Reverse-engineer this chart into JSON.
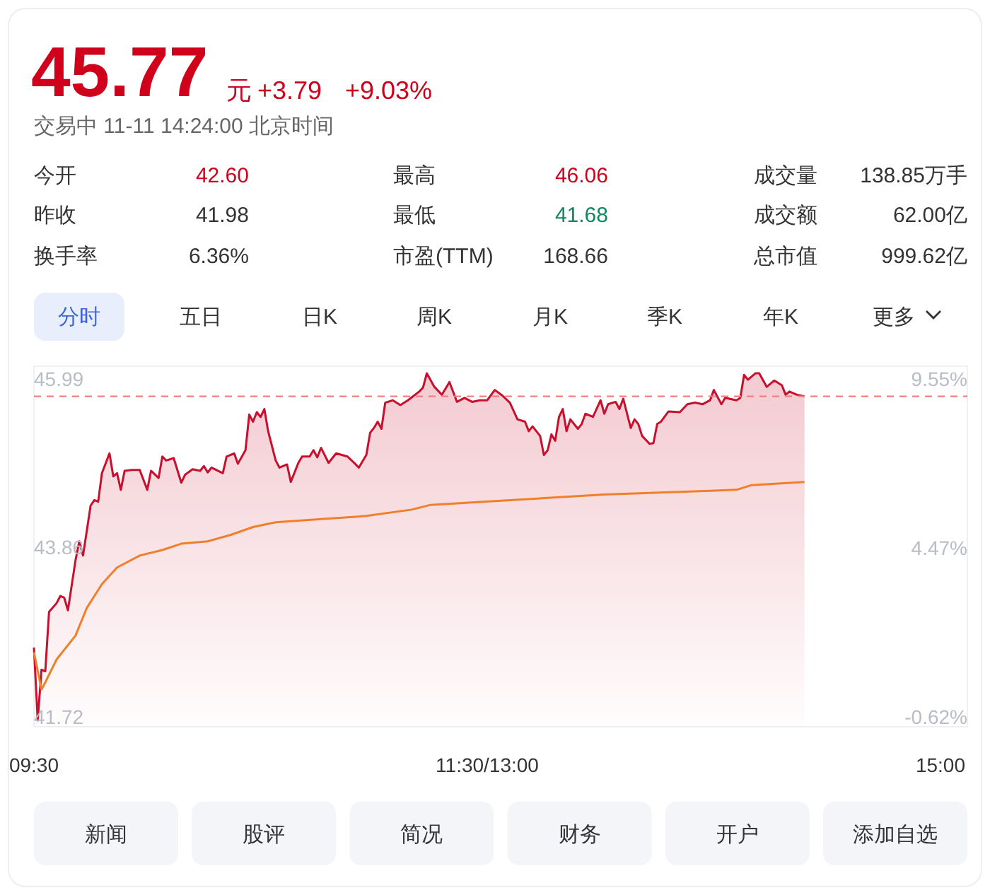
{
  "chart_data": [
    {
      "type": "other",
      "title": "45.77",
      "annotations": [
        "元",
        "+3.79",
        "+9.03%",
        "交易中 11-11 14:24:00 北京时间",
        "今开",
        "42.60",
        "最高",
        "46.06",
        "成交量",
        "138.85万手",
        "昨收",
        "41.98",
        "最低",
        "41.68",
        "成交额",
        "62.00亿",
        "换手率",
        "6.36%",
        "市盈(TTM)",
        "168.66",
        "总市值",
        "999.62亿",
        "分时",
        "五日",
        "日K",
        "周K",
        "月K",
        "季K",
        "年K",
        "更多"
      ]
    },
    {
      "type": "line",
      "categories": [
        "09:30",
        null,
        null,
        null,
        null,
        null,
        null,
        null,
        null,
        null,
        null,
        null,
        null,
        null,
        null,
        null,
        null,
        null,
        null,
        null,
        null,
        null,
        null,
        null,
        null,
        null,
        null,
        null,
        null,
        null,
        null,
        null,
        null,
        null,
        null,
        null,
        null,
        null,
        null,
        null,
        null,
        null,
        null,
        null,
        null,
        null,
        null,
        null,
        null,
        null,
        null,
        null,
        null,
        null,
        null,
        null,
        null,
        null,
        null,
        null,
        null,
        null,
        null,
        null,
        null,
        null,
        null,
        null,
        null,
        null,
        null,
        null,
        null,
        null,
        null,
        null,
        null,
        null,
        null,
        null,
        null,
        null,
        null,
        null,
        null,
        null,
        null,
        null,
        null,
        null,
        null,
        null,
        null,
        null,
        null,
        null,
        null,
        null,
        null,
        null,
        null,
        null,
        null,
        null,
        null,
        null,
        null,
        null,
        null,
        null,
        null,
        null,
        null,
        null,
        null,
        null,
        null,
        null,
        null,
        null,
        "11:30/13:00",
        null,
        null,
        null,
        null,
        null,
        null,
        null,
        null,
        null,
        null,
        null,
        null,
        null,
        null,
        null,
        null,
        null,
        null,
        null,
        null,
        null,
        null,
        null,
        null,
        null,
        null,
        null,
        null,
        null,
        null,
        null,
        null,
        null,
        null,
        null,
        null,
        null,
        null,
        null,
        null,
        null,
        null,
        null,
        null,
        null,
        null,
        null,
        null,
        null,
        null,
        null,
        null,
        null,
        null,
        null,
        null,
        null,
        null,
        null,
        null,
        null,
        null,
        null,
        null,
        null,
        null,
        null,
        null,
        null,
        null,
        null,
        null,
        null,
        null,
        null,
        null,
        null,
        null,
        null,
        null,
        null,
        null,
        null,
        null,
        null,
        null,
        null,
        null,
        null,
        null,
        null,
        null,
        null,
        null,
        null,
        null,
        null,
        null,
        null,
        null,
        null,
        null,
        null,
        null,
        null,
        null,
        null,
        null,
        null,
        null,
        null,
        null,
        null,
        null,
        null,
        null,
        null,
        null,
        null,
        "15:00"
      ],
      "ylim": [
        41.6,
        46.15
      ],
      "yticks": [
        41.72,
        43.86,
        45.99
      ],
      "y2lim": [
        -0.91,
        9.93
      ],
      "y2ticks": [
        {
          "value": -0.62,
          "label": "-0.62%"
        },
        {
          "value": 4.47,
          "label": "4.47%"
        },
        {
          "value": 9.55,
          "label": "9.55%"
        }
      ],
      "ref_lines": [
        {
          "axis": "y",
          "value": 45.77,
          "color": "#f08080",
          "line_style": "dashed"
        }
      ],
      "series": [
        {
          "type": "area",
          "color": "#c8102e",
          "values": [
            42.6,
            41.68,
            42.32,
            42.3,
            43.05,
            null,
            43.16,
            43.25,
            43.23,
            43.07,
            null,
            43.7,
            43.94,
            43.76,
            null,
            44.39,
            44.46,
            44.44,
            44.8,
            null,
            45.05,
            44.76,
            44.8,
            44.59,
            44.83,
            null,
            44.84,
            null,
            44.84,
            null,
            44.59,
            44.83,
            null,
            44.74,
            45.01,
            44.96,
            null,
            44.99,
            null,
            44.68,
            44.78,
            null,
            44.85,
            null,
            44.83,
            44.89,
            44.81,
            44.87,
            null,
            null,
            44.8,
            45.01,
            null,
            45.05,
            44.92,
            null,
            45.09,
            45.54,
            45.45,
            45.57,
            45.51,
            45.61,
            45.33,
            null,
            44.96,
            44.87,
            null,
            44.91,
            44.69,
            null,
            44.93,
            45.01,
            null,
            45.01,
            45.09,
            45,
            45.12,
            null,
            44.93,
            null,
            45.05,
            null,
            null,
            45.01,
            null,
            44.92,
            44.87,
            null,
            45.03,
            45.31,
            45.37,
            45.45,
            45.36,
            45.69,
            null,
            45.72,
            null,
            45.66,
            null,
            45.72,
            null,
            null,
            45.83,
            45.88,
            46.06,
            null,
            45.89,
            null,
            45.79,
            null,
            45.95,
            null,
            45.7,
            null,
            45.75,
            null,
            45.7,
            null,
            45.72,
            null,
            45.72,
            null,
            45.85,
            null,
            45.78,
            null,
            45.69,
            null,
            45.48,
            null,
            45.45,
            45.33,
            45.39,
            null,
            45.27,
            45.03,
            45.09,
            45.29,
            45.21,
            45.51,
            45.61,
            45.33,
            45.48,
            null,
            45.36,
            45.42,
            45.55,
            null,
            45.51,
            null,
            45.72,
            45.55,
            45.67,
            null,
            45.7,
            45.61,
            45.74,
            null,
            45.37,
            45.48,
            45.42,
            45.27,
            null,
            45.17,
            45.18,
            45.42,
            45.45,
            null,
            45.58,
            null,
            null,
            45.57,
            null,
            45.67,
            null,
            45.69,
            null,
            45.67,
            null,
            45.72,
            45.85,
            null,
            45.67,
            45.75,
            null,
            null,
            45.72,
            45.75,
            46.04,
            45.98,
            null,
            46.06,
            46.06,
            null,
            45.89,
            null,
            45.97,
            null,
            45.91,
            45.79,
            45.83,
            null,
            45.79,
            null,
            45.77,
            null,
            null,
            null,
            null,
            null,
            null,
            null,
            null,
            null,
            null,
            null,
            null,
            null,
            null,
            null,
            null,
            null,
            null,
            null,
            null,
            null,
            null,
            null,
            null,
            null,
            null,
            null,
            null,
            null,
            null,
            null,
            null,
            null,
            null,
            null,
            null
          ]
        },
        {
          "color": "#f07f2a",
          "values": [
            42.54,
            null,
            42.07,
            42.16,
            null,
            null,
            42.45,
            null,
            null,
            null,
            null,
            42.75,
            null,
            null,
            43.1,
            null,
            null,
            null,
            43.4,
            null,
            null,
            null,
            43.61,
            null,
            null,
            null,
            null,
            null,
            43.76,
            null,
            null,
            null,
            null,
            null,
            43.83,
            null,
            null,
            null,
            null,
            43.91,
            null,
            null,
            null,
            null,
            null,
            null,
            43.94,
            null,
            null,
            null,
            null,
            null,
            44.02,
            null,
            null,
            null,
            null,
            null,
            44.12,
            null,
            null,
            null,
            null,
            null,
            44.18,
            null,
            null,
            null,
            null,
            null,
            null,
            null,
            null,
            null,
            null,
            null,
            44.22,
            null,
            null,
            null,
            null,
            null,
            null,
            null,
            null,
            null,
            null,
            null,
            44.26,
            null,
            null,
            null,
            null,
            null,
            null,
            null,
            null,
            null,
            null,
            null,
            44.34,
            null,
            null,
            null,
            null,
            44.4,
            null,
            null,
            null,
            null,
            null,
            null,
            null,
            null,
            null,
            null,
            null,
            null,
            null,
            44.44,
            null,
            null,
            null,
            null,
            null,
            null,
            null,
            null,
            null,
            null,
            null,
            null,
            null,
            null,
            null,
            null,
            null,
            null,
            null,
            null,
            null,
            null,
            null,
            null,
            null,
            null,
            null,
            null,
            null,
            null,
            null,
            44.53,
            null,
            null,
            null,
            null,
            null,
            null,
            null,
            null,
            null,
            null,
            null,
            null,
            null,
            null,
            null,
            null,
            null,
            null,
            null,
            null,
            null,
            null,
            null,
            null,
            null,
            null,
            null,
            null,
            null,
            null,
            null,
            null,
            null,
            null,
            44.59,
            null,
            null,
            null,
            44.65,
            null,
            null,
            null,
            null,
            null,
            null,
            null,
            null,
            null,
            null,
            null,
            null,
            null,
            44.69,
            null,
            null,
            null,
            null,
            null,
            null,
            null,
            null,
            null,
            null,
            null,
            null,
            null,
            null,
            null,
            null,
            null,
            null,
            null,
            null,
            null,
            null,
            null,
            null,
            null,
            null,
            null,
            null,
            null,
            null,
            null,
            null,
            null,
            null,
            null,
            null
          ]
        }
      ]
    },
    {
      "type": "other",
      "annotations": [
        "新闻",
        "股评",
        "简况",
        "财务",
        "开户",
        "添加自选"
      ]
    }
  ]
}
